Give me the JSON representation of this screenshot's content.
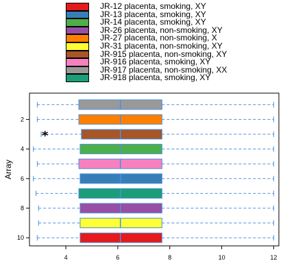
{
  "chart_data": {
    "type": "boxplot",
    "orientation": "horizontal",
    "ylabel": "Array",
    "xlabel": "",
    "xlim": [
      2.6,
      12.2
    ],
    "x_ticks": [
      4,
      6,
      8,
      10,
      12
    ],
    "y_ticks": [
      2,
      4,
      6,
      8,
      10
    ],
    "grid": false,
    "legend_position": "top",
    "series": [
      {
        "label": "JR-12 placenta, smoking, XY",
        "color": "#E41A1C",
        "array": 10,
        "whisker_low": 2.9,
        "q1": 4.55,
        "median": 6.1,
        "q3": 7.7,
        "whisker_high": 12.0,
        "outliers": []
      },
      {
        "label": "JR-13 placenta, smoking, XY",
        "color": "#377EB8",
        "array": 6,
        "whisker_low": 2.75,
        "q1": 4.55,
        "median": 6.1,
        "q3": 7.7,
        "whisker_high": 12.0,
        "outliers": []
      },
      {
        "label": "JR-14 placenta, smoking, XY",
        "color": "#4DAF4A",
        "array": 4,
        "whisker_low": 2.75,
        "q1": 4.55,
        "median": 6.1,
        "q3": 7.7,
        "whisker_high": 12.0,
        "outliers": []
      },
      {
        "label": "JR-26 placenta, non-smoking, XY",
        "color": "#984EA3",
        "array": 8,
        "whisker_low": 2.95,
        "q1": 4.55,
        "median": 6.1,
        "q3": 7.7,
        "whisker_high": 12.0,
        "outliers": []
      },
      {
        "label": "JR-27 placenta, non-smoking, X",
        "color": "#FF7F00",
        "array": 2,
        "whisker_low": 2.9,
        "q1": 4.5,
        "median": 6.1,
        "q3": 7.7,
        "whisker_high": 12.0,
        "outliers": []
      },
      {
        "label": "JR-31 placenta, non-smoking, XY",
        "color": "#FFFF33",
        "array": 9,
        "whisker_low": 2.95,
        "q1": 4.55,
        "median": 6.1,
        "q3": 7.7,
        "whisker_high": 12.0,
        "outliers": []
      },
      {
        "label": "JR-915 placenta, non-smoking, XY",
        "color": "#A65628",
        "array": 3,
        "whisker_low": 3.05,
        "q1": 4.6,
        "median": 6.1,
        "q3": 7.7,
        "whisker_high": 12.0,
        "outliers": [
          3.2
        ]
      },
      {
        "label": "JR-916 placenta, smoking, XY",
        "color": "#F781BF",
        "array": 5,
        "whisker_low": 2.9,
        "q1": 4.5,
        "median": 6.1,
        "q3": 7.7,
        "whisker_high": 12.0,
        "outliers": []
      },
      {
        "label": "JR-917 placenta, non-smoking, XX",
        "color": "#999999",
        "array": 1,
        "whisker_low": 2.9,
        "q1": 4.5,
        "median": 6.1,
        "q3": 7.7,
        "whisker_high": 12.0,
        "outliers": []
      },
      {
        "label": "JR-918 placenta, smoking, XY",
        "color": "#1B9E77",
        "array": 7,
        "whisker_low": 2.85,
        "q1": 4.5,
        "median": 6.1,
        "q3": 7.7,
        "whisker_high": 12.0,
        "outliers": []
      }
    ],
    "colors": {
      "whisker": "#4A90E2",
      "median": "#4A90E2",
      "box_border": "#4A90E2",
      "axis": "#000000"
    }
  }
}
